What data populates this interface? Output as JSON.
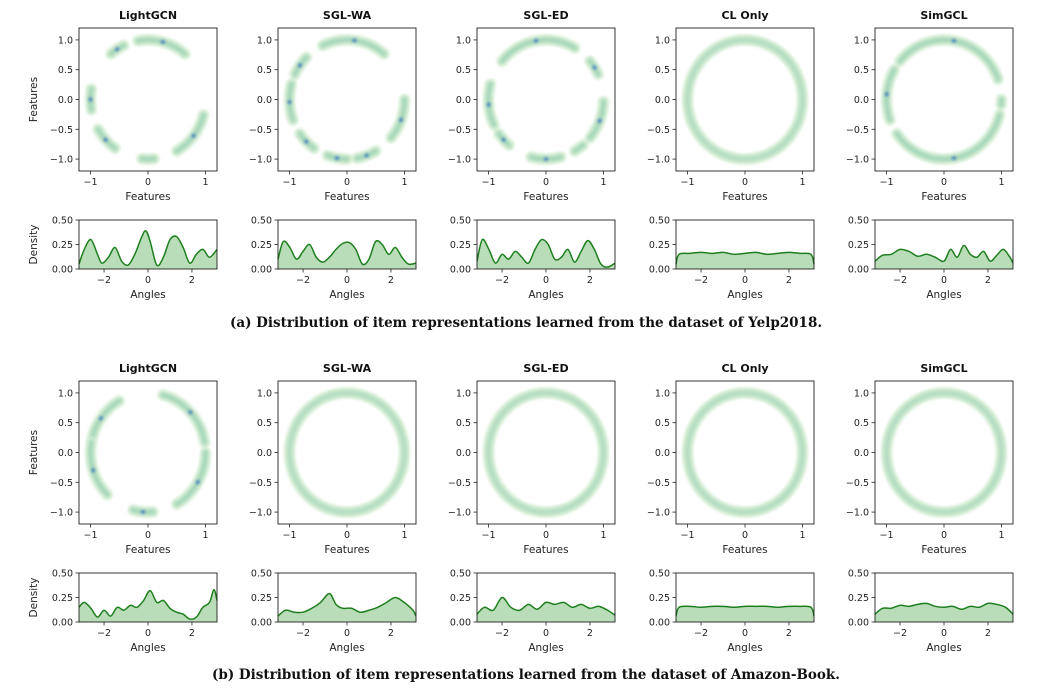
{
  "figure": {
    "rows": [
      {
        "caption": "(a) Distribution of item representations learned from the dataset of Yelp2018.",
        "methods": [
          "LightGCN",
          "SGL-WA",
          "SGL-ED",
          "CL Only",
          "SimGCL"
        ]
      },
      {
        "caption": "(b) Distribution of item representations learned from the dataset of Amazon-Book.",
        "methods": [
          "LightGCN",
          "SGL-WA",
          "SGL-ED",
          "CL Only",
          "SimGCL"
        ]
      }
    ],
    "feature_xlabel": "Features",
    "feature_ylabel": "Features",
    "angle_xlabel": "Angles",
    "density_ylabel": "Density",
    "colors": {
      "line": "#1e7f1e",
      "fill": "#b9dcb9",
      "ring_light": "#d2ecd2",
      "ring_mid": "#9fd3b6",
      "ring_dark": "#2a78b8"
    }
  },
  "chart_data": [
    {
      "dataset": "Yelp2018",
      "method": "LightGCN",
      "type": "area",
      "scatter": {
        "xlim": [
          -1.2,
          1.2
        ],
        "ylim": [
          -1.2,
          1.2
        ],
        "xticks": [
          "−1",
          "0",
          "1"
        ],
        "yticks": [
          "1.0",
          "0.5",
          "0.0",
          "−0.5",
          "−1.0"
        ],
        "arc_clusters_deg": [
          [
            50,
            100
          ],
          [
            115,
            130
          ],
          [
            170,
            190
          ],
          [
            210,
            235
          ],
          [
            264,
            276
          ],
          [
            300,
            345
          ]
        ]
      },
      "density": {
        "xlim": [
          -3.14,
          3.14
        ],
        "ylim": [
          0,
          0.5
        ],
        "xticks": [
          "−2",
          "0",
          "2"
        ],
        "yticks": [
          "0.50",
          "0.25",
          "0.00"
        ],
        "x": [
          -3.14,
          -2.9,
          -2.6,
          -2.3,
          -2.1,
          -1.8,
          -1.5,
          -1.2,
          -0.9,
          -0.6,
          -0.3,
          -0.1,
          0.1,
          0.4,
          0.7,
          1.0,
          1.3,
          1.6,
          1.9,
          2.2,
          2.5,
          2.8,
          3.14
        ],
        "y": [
          0.05,
          0.2,
          0.3,
          0.15,
          0.06,
          0.12,
          0.22,
          0.08,
          0.04,
          0.15,
          0.32,
          0.39,
          0.28,
          0.04,
          0.12,
          0.3,
          0.33,
          0.22,
          0.06,
          0.15,
          0.2,
          0.12,
          0.2
        ]
      }
    },
    {
      "dataset": "Yelp2018",
      "method": "SGL-WA",
      "type": "area",
      "scatter": {
        "xlim": [
          -1.2,
          1.2
        ],
        "ylim": [
          -1.2,
          1.2
        ],
        "xticks": [
          "−1",
          "0",
          "1"
        ],
        "yticks": [
          "1.0",
          "0.5",
          "0.0",
          "−0.5",
          "−1.0"
        ],
        "arc_clusters_deg": [
          [
            50,
            115
          ],
          [
            135,
            155
          ],
          [
            165,
            200
          ],
          [
            215,
            235
          ],
          [
            250,
            270
          ],
          [
            280,
            300
          ],
          [
            320,
            360
          ]
        ]
      },
      "density": {
        "xlim": [
          -3.14,
          3.14
        ],
        "ylim": [
          0,
          0.5
        ],
        "xticks": [
          "−2",
          "0",
          "2"
        ],
        "yticks": [
          "0.50",
          "0.25",
          "0.00"
        ],
        "x": [
          -3.14,
          -2.9,
          -2.6,
          -2.3,
          -2.0,
          -1.7,
          -1.4,
          -1.1,
          -0.8,
          -0.5,
          -0.2,
          0.1,
          0.4,
          0.7,
          1.0,
          1.3,
          1.6,
          1.9,
          2.2,
          2.5,
          2.8,
          3.14
        ],
        "y": [
          0.1,
          0.28,
          0.22,
          0.1,
          0.18,
          0.25,
          0.12,
          0.07,
          0.12,
          0.2,
          0.26,
          0.27,
          0.2,
          0.05,
          0.1,
          0.28,
          0.25,
          0.15,
          0.22,
          0.12,
          0.05,
          0.06
        ]
      }
    },
    {
      "dataset": "Yelp2018",
      "method": "SGL-ED",
      "type": "area",
      "scatter": {
        "xlim": [
          -1.2,
          1.2
        ],
        "ylim": [
          -1.2,
          1.2
        ],
        "xticks": [
          "−1",
          "0",
          "1"
        ],
        "yticks": [
          "1.0",
          "0.5",
          "0.0",
          "−0.5",
          "−1.0"
        ],
        "arc_clusters_deg": [
          [
            60,
            140
          ],
          [
            165,
            205
          ],
          [
            215,
            230
          ],
          [
            255,
            285
          ],
          [
            300,
            310
          ],
          [
            320,
            358
          ],
          [
            25,
            40
          ]
        ]
      },
      "density": {
        "xlim": [
          -3.14,
          3.14
        ],
        "ylim": [
          0,
          0.5
        ],
        "xticks": [
          "−2",
          "0",
          "2"
        ],
        "yticks": [
          "0.50",
          "0.25",
          "0.00"
        ],
        "x": [
          -3.14,
          -2.9,
          -2.6,
          -2.3,
          -2.0,
          -1.7,
          -1.4,
          -1.1,
          -0.8,
          -0.5,
          -0.2,
          0.1,
          0.4,
          0.7,
          1.0,
          1.3,
          1.6,
          1.9,
          2.2,
          2.5,
          2.8,
          3.14
        ],
        "y": [
          0.08,
          0.3,
          0.2,
          0.06,
          0.15,
          0.1,
          0.18,
          0.12,
          0.06,
          0.2,
          0.3,
          0.25,
          0.1,
          0.12,
          0.2,
          0.07,
          0.18,
          0.29,
          0.2,
          0.05,
          0.02,
          0.06
        ]
      }
    },
    {
      "dataset": "Yelp2018",
      "method": "CL Only",
      "type": "area",
      "scatter": {
        "xlim": [
          -1.2,
          1.2
        ],
        "ylim": [
          -1.2,
          1.2
        ],
        "xticks": [
          "−1",
          "0",
          "1"
        ],
        "yticks": [
          "1.0",
          "0.5",
          "0.0",
          "−0.5",
          "−1.0"
        ],
        "arc_clusters_deg": [
          [
            0,
            360
          ]
        ]
      },
      "density": {
        "xlim": [
          -3.14,
          3.14
        ],
        "ylim": [
          0,
          0.5
        ],
        "xticks": [
          "−2",
          "0",
          "2"
        ],
        "yticks": [
          "0.50",
          "0.25",
          "0.00"
        ],
        "x": [
          -3.14,
          -3.0,
          -2.5,
          -2.0,
          -1.5,
          -1.0,
          -0.5,
          0.0,
          0.5,
          1.0,
          1.5,
          2.0,
          2.5,
          3.0,
          3.14
        ],
        "y": [
          0.05,
          0.15,
          0.16,
          0.17,
          0.16,
          0.17,
          0.15,
          0.16,
          0.17,
          0.15,
          0.16,
          0.17,
          0.16,
          0.15,
          0.05
        ]
      }
    },
    {
      "dataset": "Yelp2018",
      "method": "SimGCL",
      "type": "area",
      "scatter": {
        "xlim": [
          -1.2,
          1.2
        ],
        "ylim": [
          -1.2,
          1.2
        ],
        "xticks": [
          "−1",
          "0",
          "1"
        ],
        "yticks": [
          "1.0",
          "0.5",
          "0.0",
          "−0.5",
          "−1.0"
        ],
        "arc_clusters_deg": [
          [
            20,
            140
          ],
          [
            150,
            200
          ],
          [
            215,
            345
          ],
          [
            355,
            360
          ]
        ]
      },
      "density": {
        "xlim": [
          -3.14,
          3.14
        ],
        "ylim": [
          0,
          0.5
        ],
        "xticks": [
          "−2",
          "0",
          "2"
        ],
        "yticks": [
          "0.50",
          "0.25",
          "0.00"
        ],
        "x": [
          -3.14,
          -2.8,
          -2.4,
          -2.0,
          -1.6,
          -1.2,
          -0.8,
          -0.4,
          0.0,
          0.3,
          0.6,
          0.9,
          1.2,
          1.5,
          1.8,
          2.1,
          2.4,
          2.7,
          3.0,
          3.14
        ],
        "y": [
          0.08,
          0.14,
          0.15,
          0.2,
          0.18,
          0.13,
          0.15,
          0.12,
          0.08,
          0.2,
          0.12,
          0.24,
          0.15,
          0.12,
          0.18,
          0.08,
          0.14,
          0.2,
          0.12,
          0.06
        ]
      }
    },
    {
      "dataset": "Amazon-Book",
      "method": "LightGCN",
      "type": "area",
      "scatter": {
        "xlim": [
          -1.2,
          1.2
        ],
        "ylim": [
          -1.2,
          1.2
        ],
        "xticks": [
          "−1",
          "0",
          "1"
        ],
        "yticks": [
          "1.0",
          "0.5",
          "0.0",
          "−0.5",
          "−1.0"
        ],
        "arc_clusters_deg": [
          [
            10,
            75
          ],
          [
            120,
            170
          ],
          [
            170,
            225
          ],
          [
            255,
            275
          ],
          [
            300,
            360
          ]
        ]
      },
      "density": {
        "xlim": [
          -3.14,
          3.14
        ],
        "ylim": [
          0,
          0.5
        ],
        "xticks": [
          "−2",
          "0",
          "2"
        ],
        "yticks": [
          "0.50",
          "0.25",
          "0.00"
        ],
        "x": [
          -3.14,
          -2.9,
          -2.6,
          -2.3,
          -2.0,
          -1.7,
          -1.4,
          -1.1,
          -0.8,
          -0.5,
          -0.2,
          0.1,
          0.4,
          0.7,
          1.0,
          1.3,
          1.6,
          1.9,
          2.2,
          2.5,
          2.8,
          3.0,
          3.14
        ],
        "y": [
          0.15,
          0.2,
          0.14,
          0.05,
          0.12,
          0.06,
          0.15,
          0.12,
          0.17,
          0.15,
          0.22,
          0.32,
          0.2,
          0.22,
          0.14,
          0.1,
          0.08,
          0.03,
          0.05,
          0.15,
          0.2,
          0.33,
          0.22
        ]
      }
    },
    {
      "dataset": "Amazon-Book",
      "method": "SGL-WA",
      "type": "area",
      "scatter": {
        "xlim": [
          -1.2,
          1.2
        ],
        "ylim": [
          -1.2,
          1.2
        ],
        "xticks": [
          "−1",
          "0",
          "1"
        ],
        "yticks": [
          "1.0",
          "0.5",
          "0.0",
          "−0.5",
          "−1.0"
        ],
        "arc_clusters_deg": [
          [
            0,
            360
          ]
        ]
      },
      "density": {
        "xlim": [
          -3.14,
          3.14
        ],
        "ylim": [
          0,
          0.5
        ],
        "xticks": [
          "−2",
          "0",
          "2"
        ],
        "yticks": [
          "0.50",
          "0.25",
          "0.00"
        ],
        "x": [
          -3.14,
          -2.8,
          -2.4,
          -2.0,
          -1.6,
          -1.2,
          -0.8,
          -0.5,
          -0.2,
          0.2,
          0.6,
          1.0,
          1.4,
          1.8,
          2.2,
          2.6,
          3.0,
          3.14
        ],
        "y": [
          0.06,
          0.12,
          0.1,
          0.1,
          0.14,
          0.2,
          0.29,
          0.18,
          0.14,
          0.14,
          0.1,
          0.12,
          0.15,
          0.2,
          0.25,
          0.2,
          0.12,
          0.06
        ]
      }
    },
    {
      "dataset": "Amazon-Book",
      "method": "SGL-ED",
      "type": "area",
      "scatter": {
        "xlim": [
          -1.2,
          1.2
        ],
        "ylim": [
          -1.2,
          1.2
        ],
        "xticks": [
          "−1",
          "0",
          "1"
        ],
        "yticks": [
          "1.0",
          "0.5",
          "0.0",
          "−0.5",
          "−1.0"
        ],
        "arc_clusters_deg": [
          [
            0,
            360
          ]
        ]
      },
      "density": {
        "xlim": [
          -3.14,
          3.14
        ],
        "ylim": [
          0,
          0.5
        ],
        "xticks": [
          "−2",
          "0",
          "2"
        ],
        "yticks": [
          "0.50",
          "0.25",
          "0.00"
        ],
        "x": [
          -3.14,
          -2.8,
          -2.4,
          -2.0,
          -1.6,
          -1.2,
          -0.8,
          -0.4,
          0.0,
          0.4,
          0.8,
          1.2,
          1.6,
          2.0,
          2.4,
          2.8,
          3.14
        ],
        "y": [
          0.08,
          0.15,
          0.12,
          0.25,
          0.15,
          0.12,
          0.18,
          0.13,
          0.2,
          0.18,
          0.2,
          0.15,
          0.18,
          0.14,
          0.16,
          0.12,
          0.07
        ]
      }
    },
    {
      "dataset": "Amazon-Book",
      "method": "CL Only",
      "type": "area",
      "scatter": {
        "xlim": [
          -1.2,
          1.2
        ],
        "ylim": [
          -1.2,
          1.2
        ],
        "xticks": [
          "−1",
          "0",
          "1"
        ],
        "yticks": [
          "1.0",
          "0.5",
          "0.0",
          "−0.5",
          "−1.0"
        ],
        "arc_clusters_deg": [
          [
            0,
            360
          ]
        ]
      },
      "density": {
        "xlim": [
          -3.14,
          3.14
        ],
        "ylim": [
          0,
          0.5
        ],
        "xticks": [
          "−2",
          "0",
          "2"
        ],
        "yticks": [
          "0.50",
          "0.25",
          "0.00"
        ],
        "x": [
          -3.14,
          -3.0,
          -2.5,
          -2.0,
          -1.5,
          -1.0,
          -0.5,
          0.0,
          0.5,
          1.0,
          1.5,
          2.0,
          2.5,
          3.0,
          3.14
        ],
        "y": [
          0.06,
          0.15,
          0.16,
          0.15,
          0.16,
          0.16,
          0.15,
          0.16,
          0.16,
          0.16,
          0.15,
          0.16,
          0.16,
          0.15,
          0.06
        ]
      }
    },
    {
      "dataset": "Amazon-Book",
      "method": "SimGCL",
      "type": "area",
      "scatter": {
        "xlim": [
          -1.2,
          1.2
        ],
        "ylim": [
          -1.2,
          1.2
        ],
        "xticks": [
          "−1",
          "0",
          "1"
        ],
        "yticks": [
          "1.0",
          "0.5",
          "0.0",
          "−0.5",
          "−1.0"
        ],
        "arc_clusters_deg": [
          [
            0,
            360
          ]
        ]
      },
      "density": {
        "xlim": [
          -3.14,
          3.14
        ],
        "ylim": [
          0,
          0.5
        ],
        "xticks": [
          "−2",
          "0",
          "2"
        ],
        "yticks": [
          "0.50",
          "0.25",
          "0.00"
        ],
        "x": [
          -3.14,
          -2.8,
          -2.4,
          -2.0,
          -1.6,
          -1.2,
          -0.8,
          -0.4,
          0.0,
          0.4,
          0.8,
          1.2,
          1.6,
          2.0,
          2.4,
          2.8,
          3.14
        ],
        "y": [
          0.08,
          0.14,
          0.14,
          0.17,
          0.16,
          0.18,
          0.19,
          0.16,
          0.15,
          0.16,
          0.13,
          0.16,
          0.15,
          0.19,
          0.18,
          0.15,
          0.08
        ]
      }
    }
  ]
}
